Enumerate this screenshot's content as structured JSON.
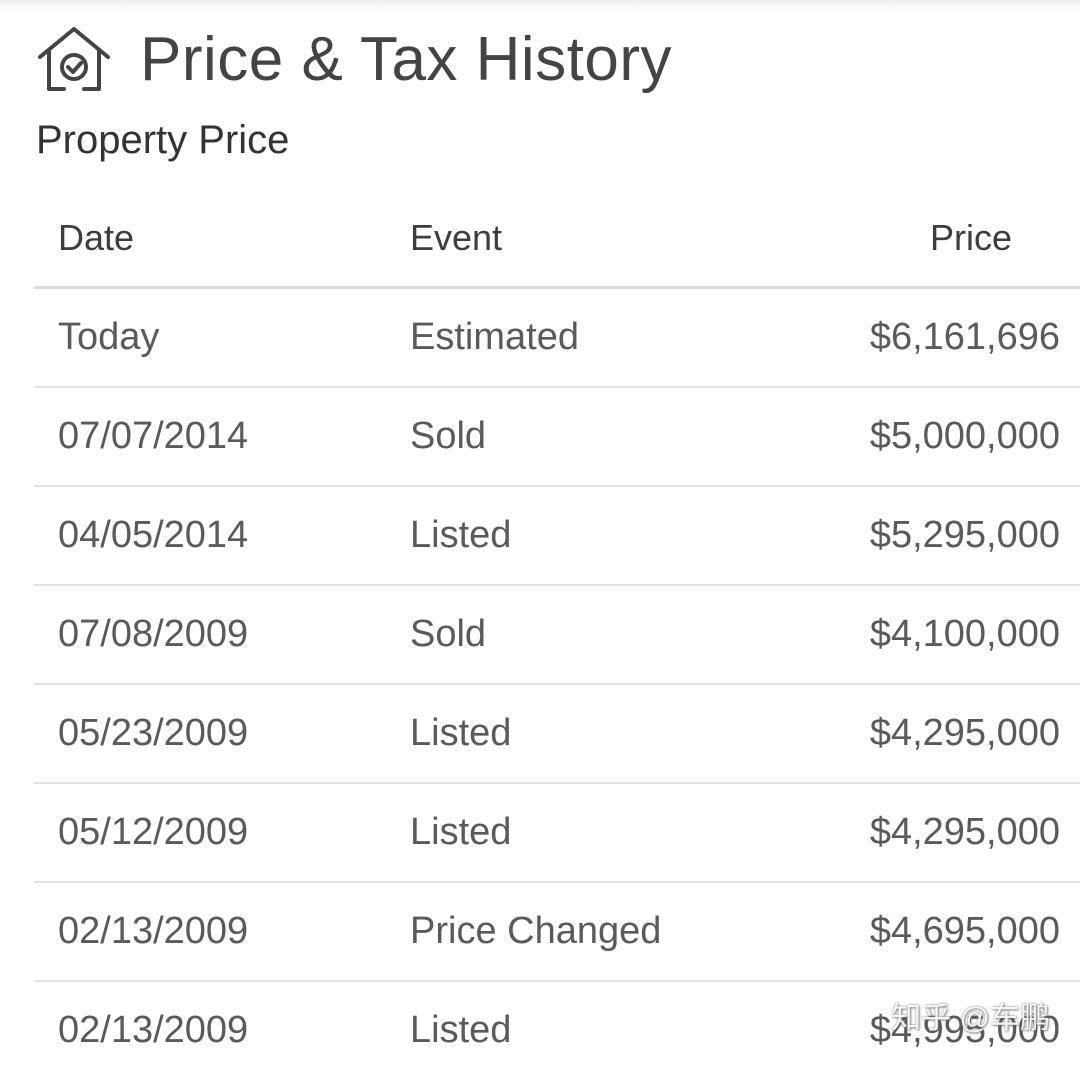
{
  "header": {
    "title": "Price & Tax History",
    "icon": "home-check-icon"
  },
  "section": {
    "title": "Property Price"
  },
  "table": {
    "columns": [
      "Date",
      "Event",
      "Price"
    ],
    "rows": [
      {
        "date": "Today",
        "event": "Estimated",
        "price": "$6,161,696"
      },
      {
        "date": "07/07/2014",
        "event": "Sold",
        "price": "$5,000,000"
      },
      {
        "date": "04/05/2014",
        "event": "Listed",
        "price": "$5,295,000"
      },
      {
        "date": "07/08/2009",
        "event": "Sold",
        "price": "$4,100,000"
      },
      {
        "date": "05/23/2009",
        "event": "Listed",
        "price": "$4,295,000"
      },
      {
        "date": "05/12/2009",
        "event": "Listed",
        "price": "$4,295,000"
      },
      {
        "date": "02/13/2009",
        "event": "Price Changed",
        "price": "$4,695,000"
      },
      {
        "date": "02/13/2009",
        "event": "Listed",
        "price": "$4,995,000"
      }
    ]
  },
  "watermark": "知乎 @车鹏"
}
